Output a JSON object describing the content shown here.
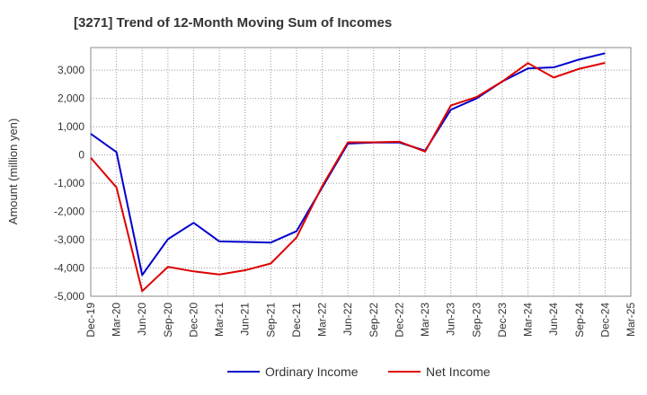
{
  "chart_data": {
    "type": "line",
    "title": "[3271]  Trend of 12-Month Moving Sum of Incomes",
    "xlabel": "",
    "ylabel": "Amount (million yen)",
    "ylim": [
      -5000,
      3800
    ],
    "yticks": [
      3000,
      2000,
      1000,
      0,
      -1000,
      -2000,
      -3000,
      -4000,
      -5000
    ],
    "ytick_labels": [
      "3,000",
      "2,000",
      "1,000",
      "0",
      "-1,000",
      "-2,000",
      "-3,000",
      "-4,000",
      "-5,000"
    ],
    "categories": [
      "Dec-19",
      "Mar-20",
      "Jun-20",
      "Sep-20",
      "Dec-20",
      "Mar-21",
      "Jun-21",
      "Sep-21",
      "Dec-21",
      "Mar-22",
      "Jun-22",
      "Sep-22",
      "Dec-22",
      "Mar-23",
      "Jun-23",
      "Sep-23",
      "Dec-23",
      "Mar-24",
      "Jun-24",
      "Sep-24",
      "Dec-24",
      "Mar-25"
    ],
    "grid": true,
    "legend_position": "bottom",
    "series": [
      {
        "name": "Ordinary Income",
        "color": "#0000cc",
        "values": [
          750,
          100,
          -4250,
          -2980,
          -2400,
          -3060,
          -3080,
          -3100,
          -2700,
          -1150,
          400,
          440,
          440,
          150,
          1600,
          2000,
          2600,
          3060,
          3100,
          3380,
          3600,
          null
        ]
      },
      {
        "name": "Net Income",
        "color": "#dd0000",
        "values": [
          -100,
          -1150,
          -4820,
          -3960,
          -4120,
          -4230,
          -4080,
          -3840,
          -2920,
          -1100,
          450,
          450,
          470,
          120,
          1750,
          2050,
          2600,
          3250,
          2740,
          3050,
          3260,
          null
        ]
      }
    ]
  }
}
